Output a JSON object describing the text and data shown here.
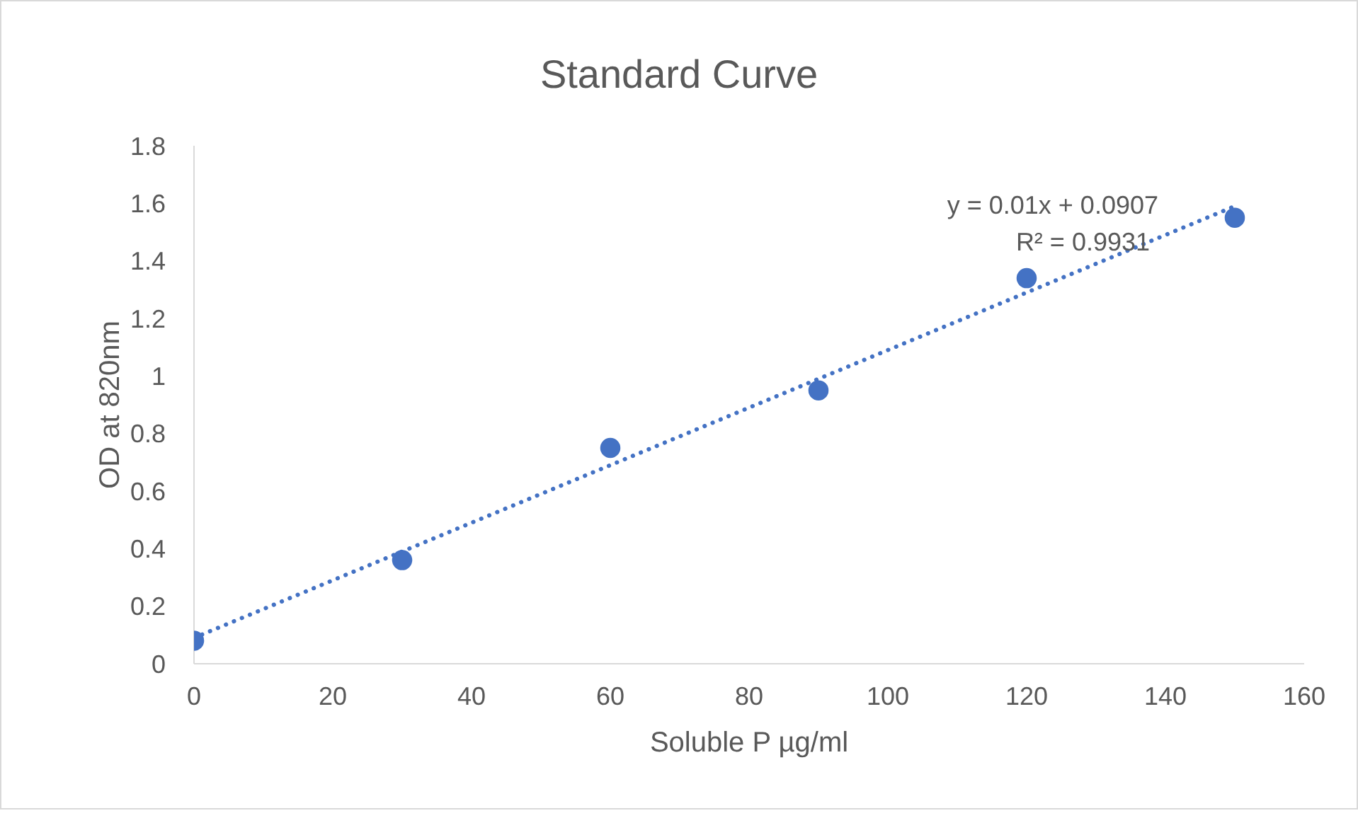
{
  "chart_data": {
    "type": "scatter",
    "title": "Standard Curve",
    "xlabel": "Soluble P µg/ml",
    "ylabel": "OD at 820nm",
    "annotations": [
      "y = 0.01x + 0.0907",
      "R² = 0.9931"
    ],
    "series": [
      {
        "color": "#4472c4",
        "x": [
          0,
          30,
          60,
          90,
          120,
          150
        ],
        "values": [
          0.08,
          0.36,
          0.75,
          0.95,
          1.34,
          1.55
        ],
        "marker": "circle"
      },
      {
        "type": "line",
        "color": "#4472c4",
        "x": [
          0,
          150
        ],
        "values": [
          0.09,
          1.59
        ],
        "line_style": "dotted"
      }
    ],
    "xlim": [
      0,
      160
    ],
    "xticks": [
      0,
      20,
      40,
      60,
      80,
      100,
      120,
      140,
      160
    ],
    "ylim": [
      0,
      1.8
    ],
    "yticks": [
      0,
      0.2,
      0.4,
      0.6,
      0.8,
      1,
      1.2,
      1.4,
      1.6,
      1.8
    ],
    "grid": false,
    "legend": false
  }
}
